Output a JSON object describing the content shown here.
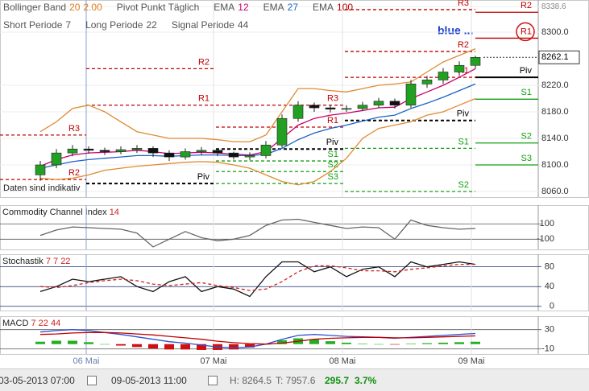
{
  "chart_data": [
    {
      "type": "candlestick",
      "legend": [
        [
          {
            "name": "Bollinger Band",
            "params": [
              "20",
              "2.00"
            ],
            "color": "#e07b20"
          },
          {
            "name": "Pivot Punkt Täglich"
          },
          {
            "name": "EMA",
            "params": [
              "12"
            ],
            "color": "#c8006a"
          },
          {
            "name": "EMA",
            "params": [
              "27"
            ],
            "color": "#1a63c6"
          },
          {
            "name": "EMA",
            "params": [
              "100"
            ],
            "color": "#c00000"
          }
        ],
        [
          {
            "name": "Short Periode",
            "params": [
              "7"
            ],
            "color": "#555555"
          },
          {
            "name": "Long Periode",
            "params": [
              "22"
            ],
            "color": "#555555"
          },
          {
            "name": "Signal Periode",
            "params": [
              "44"
            ],
            "color": "#555555"
          }
        ]
      ],
      "labels": [
        "blue ...",
        "Daten sind indikativ"
      ],
      "xlim": [
        0,
        33.4
      ],
      "xticks": [
        {
          "value": 5.35,
          "label": "06 Mai"
        },
        {
          "value": 13.25,
          "label": "07 Mai"
        },
        {
          "value": 21.25,
          "label": "08 Mai"
        },
        {
          "value": 29.25,
          "label": "09 Mai"
        }
      ],
      "x": [
        2.5,
        3.5,
        4.5,
        5.5,
        6.5,
        7.5,
        8.5,
        9.5,
        10.5,
        11.5,
        12.5,
        13.5,
        14.5,
        15.5,
        16.5,
        17.5,
        18.5,
        19.5,
        20.5,
        21.5,
        22.5,
        23.5,
        24.5,
        25.5,
        26.5,
        27.5,
        28.5,
        29.5
      ],
      "open": [
        8085,
        8100,
        8118,
        8124,
        8122,
        8120,
        8123,
        8125,
        8118,
        8112,
        8120,
        8122,
        8118,
        8112,
        8114,
        8130,
        8170,
        8190,
        8186,
        8184,
        8185,
        8190,
        8196,
        8190,
        8222,
        8228,
        8240,
        8250
      ],
      "high": [
        8106,
        8124,
        8130,
        8128,
        8126,
        8128,
        8130,
        8128,
        8122,
        8125,
        8127,
        8124,
        8120,
        8119,
        8136,
        8176,
        8196,
        8194,
        8190,
        8190,
        8195,
        8201,
        8200,
        8228,
        8234,
        8246,
        8256,
        8264.5
      ],
      "low": [
        8076,
        8095,
        8113,
        8117,
        8115,
        8116,
        8118,
        8112,
        8106,
        8108,
        8115,
        8113,
        8108,
        8107,
        8110,
        8126,
        8165,
        8180,
        8179,
        8180,
        8181,
        8186,
        8185,
        8186,
        8216,
        8222,
        8234,
        8245
      ],
      "close": [
        8100,
        8118,
        8124,
        8122,
        8120,
        8123,
        8125,
        8118,
        8112,
        8120,
        8122,
        8118,
        8112,
        8114,
        8130,
        8170,
        8190,
        8186,
        8184,
        8185,
        8190,
        8196,
        8190,
        8222,
        8228,
        8240,
        8250,
        8262.1
      ],
      "up_color": "#22a022",
      "down_color": "#111111",
      "series": [
        {
          "color": "#e08a30",
          "values": [
            8150,
            8165,
            8185,
            8190,
            8180,
            8165,
            8150,
            8145,
            8140,
            8140,
            8140,
            8138,
            8135,
            8135,
            8145,
            8180,
            8215,
            8215,
            8212,
            8210,
            8215,
            8220,
            8222,
            8225,
            8240,
            8255,
            8265,
            8275
          ]
        },
        {
          "color": "#e08a30",
          "values": [
            8080,
            8078,
            8080,
            8085,
            8092,
            8095,
            8098,
            8100,
            8102,
            8104,
            8105,
            8104,
            8100,
            8095,
            8085,
            8075,
            8070,
            8075,
            8090,
            8110,
            8140,
            8155,
            8160,
            8165,
            8175,
            8180,
            8190,
            8200
          ]
        },
        {
          "color": "#c8006a",
          "values": [
            8098,
            8108,
            8115,
            8118,
            8119,
            8120,
            8122,
            8120,
            8117,
            8118,
            8119,
            8118,
            8116,
            8115,
            8120,
            8140,
            8160,
            8170,
            8175,
            8178,
            8182,
            8186,
            8187,
            8200,
            8210,
            8220,
            8232,
            8245
          ]
        },
        {
          "color": "#1a63c6",
          "values": [
            8095,
            8100,
            8105,
            8108,
            8110,
            8112,
            8114,
            8114,
            8113,
            8114,
            8115,
            8115,
            8114,
            8114,
            8116,
            8125,
            8138,
            8148,
            8155,
            8160,
            8166,
            8172,
            8175,
            8185,
            8193,
            8202,
            8212,
            8222
          ]
        }
      ],
      "pivots": [
        {
          "x": [
            0,
            5.35
          ],
          "dashed": true,
          "levels": [
            {
              "label": "R3",
              "value": 8145,
              "color": "#c00000"
            },
            {
              "label": "R2",
              "value": 8078,
              "color": "#c00000"
            }
          ]
        },
        {
          "x": [
            5.35,
            13.4
          ],
          "dashed": true,
          "levels": [
            {
              "label": "R2",
              "value": 8245,
              "color": "#c00000"
            },
            {
              "label": "R1",
              "value": 8190,
              "color": "#c00000"
            },
            {
              "label": "Piv",
              "value": 8072,
              "color": "#000000"
            }
          ]
        },
        {
          "x": [
            13.4,
            21.4
          ],
          "dashed": true,
          "levels": [
            {
              "label": "R3",
              "value": 8190,
              "color": "#c00000"
            },
            {
              "label": "R1",
              "value": 8157,
              "color": "#c00000"
            },
            {
              "label": "Piv",
              "value": 8124,
              "color": "#000000"
            },
            {
              "label": "S1",
              "value": 8106,
              "color": "#10a010"
            },
            {
              "label": "S2",
              "value": 8090,
              "color": "#10a010"
            },
            {
              "label": "S3",
              "value": 8072,
              "color": "#10a010"
            }
          ]
        },
        {
          "x": [
            21.4,
            29.5
          ],
          "dashed": true,
          "levels": [
            {
              "label": "R3",
              "value": 8334,
              "color": "#c00000"
            },
            {
              "label": "R2",
              "value": 8271,
              "color": "#c00000"
            },
            {
              "label": "R1",
              "value": 8232,
              "color": "#c00000"
            },
            {
              "label": "Piv",
              "value": 8167,
              "color": "#000000"
            },
            {
              "label": "S1",
              "value": 8125,
              "color": "#10a010"
            },
            {
              "label": "S2",
              "value": 8060,
              "color": "#10a010"
            }
          ]
        },
        {
          "x": [
            29.5,
            33.4
          ],
          "dashed": false,
          "levels": [
            {
              "label": "R2",
              "value": 8330,
              "color": "#c00000"
            },
            {
              "label": "R1",
              "value": 8291,
              "color": "#c00000",
              "highlight": true
            },
            {
              "label": "Piv",
              "value": 8232,
              "color": "#000000"
            },
            {
              "label": "S1",
              "value": 8199,
              "color": "#10a010"
            },
            {
              "label": "S2",
              "value": 8133,
              "color": "#10a010"
            },
            {
              "label": "S3",
              "value": 8100,
              "color": "#10a010"
            }
          ]
        }
      ],
      "ylim": [
        8051.5,
        8348.5
      ],
      "yticks": [
        8338.6,
        {
          "value": 8300,
          "label": "8300.0"
        },
        {
          "value": 8220,
          "label": "8220.0"
        },
        {
          "value": 8180,
          "label": "8180.0"
        },
        {
          "value": 8140,
          "label": "8140.0"
        },
        {
          "value": 8100,
          "label": "8100.0"
        },
        {
          "value": 8060,
          "label": "8060.0"
        }
      ],
      "last": 8262.1
    },
    {
      "type": "line",
      "title": "Commodity Channel Index",
      "params": [
        "14"
      ],
      "series": [
        {
          "color": "#666666",
          "values": [
            -50,
            20,
            60,
            50,
            40,
            30,
            -20,
            -200,
            -100,
            0,
            -80,
            -120,
            -100,
            -50,
            80,
            150,
            160,
            120,
            80,
            40,
            60,
            50,
            -100,
            150,
            80,
            50,
            30,
            40
          ]
        }
      ],
      "ylim": [
        -233,
        344
      ],
      "yticks": [
        100,
        -100
      ]
    },
    {
      "type": "line",
      "title": "Stochastik",
      "params": [
        "7",
        "7",
        "22"
      ],
      "series": [
        {
          "color": "#111111",
          "values": [
            30,
            40,
            55,
            50,
            55,
            60,
            40,
            30,
            50,
            60,
            30,
            40,
            35,
            20,
            60,
            90,
            90,
            70,
            80,
            60,
            75,
            80,
            60,
            90,
            80,
            85,
            90,
            85
          ]
        },
        {
          "color": "#d02020",
          "dashed": true,
          "values": [
            40,
            38,
            42,
            48,
            52,
            55,
            52,
            45,
            42,
            45,
            48,
            42,
            38,
            32,
            35,
            50,
            70,
            82,
            82,
            78,
            72,
            72,
            70,
            75,
            78,
            82,
            85,
            85
          ]
        }
      ],
      "ylim": [
        -8.5,
        105.5
      ],
      "yticks": [
        80,
        40,
        0
      ]
    },
    {
      "type": "macd",
      "title": "MACD",
      "params": [
        "7",
        "22",
        "44"
      ],
      "series": [
        {
          "color": "#3050d0",
          "values": [
            25,
            28,
            30,
            28,
            24,
            20,
            15,
            10,
            5,
            2,
            -2,
            -6,
            -8,
            -6,
            0,
            10,
            18,
            20,
            18,
            16,
            15,
            14,
            12,
            14,
            16,
            18,
            20,
            22
          ]
        },
        {
          "color": "#c00000",
          "values": [
            20,
            21,
            23,
            24,
            24,
            23,
            21,
            19,
            16,
            13,
            10,
            6,
            3,
            1,
            0,
            2,
            6,
            10,
            12,
            13,
            14,
            14,
            13,
            13,
            14,
            15,
            16,
            17
          ]
        }
      ],
      "histogram": {
        "up_color": "#22b022",
        "down_color": "#d01010",
        "values": [
          5,
          7,
          7,
          4,
          0,
          -3,
          -6,
          -9,
          -11,
          -11,
          -12,
          -12,
          -11,
          -7,
          0,
          8,
          12,
          10,
          6,
          3,
          1,
          0,
          -1,
          1,
          2,
          3,
          4,
          5
        ]
      },
      "ylim": [
        -20.4,
        57.8
      ],
      "yticks": [
        30,
        -10
      ]
    }
  ],
  "footer": {
    "from": "03-05-2013 07:00",
    "to": "09-05-2013 11:00",
    "high": "H: 8264.5",
    "low": "T: 7957.6",
    "change": "295.7",
    "change_pct": "3.7%"
  }
}
